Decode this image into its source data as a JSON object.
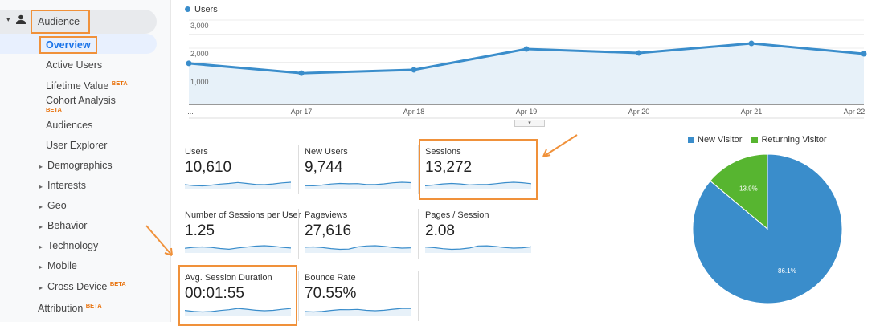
{
  "sidebar": {
    "audience": "Audience",
    "items": [
      {
        "label": "Overview",
        "active": true
      },
      {
        "label": "Active Users"
      },
      {
        "label": "Lifetime Value",
        "badge": "BETA"
      },
      {
        "label": "Cohort Analysis",
        "badge": "BETA"
      },
      {
        "label": "Audiences"
      },
      {
        "label": "User Explorer"
      },
      {
        "label": "Demographics",
        "expandable": true
      },
      {
        "label": "Interests",
        "expandable": true
      },
      {
        "label": "Geo",
        "expandable": true
      },
      {
        "label": "Behavior",
        "expandable": true
      },
      {
        "label": "Technology",
        "expandable": true
      },
      {
        "label": "Mobile",
        "expandable": true
      },
      {
        "label": "Cross Device",
        "expandable": true,
        "badge": "BETA"
      }
    ],
    "attribution": "Attribution",
    "attribution_badge": "BETA"
  },
  "colors": {
    "accent": "#1a73e8",
    "series": "#3a8dcb",
    "fill": "#e7f1f9",
    "highlight": "#f0913a",
    "new_visitor": "#3a8dcb",
    "returning_visitor": "#57b530"
  },
  "chart_data": [
    {
      "type": "area",
      "legend": [
        "Users"
      ],
      "x": [
        "...",
        "Apr 17",
        "Apr 18",
        "Apr 19",
        "Apr 20",
        "Apr 21",
        "Apr 22"
      ],
      "series": [
        {
          "name": "Users",
          "values": [
            1460,
            1110,
            1230,
            1970,
            1830,
            2170,
            1800
          ]
        }
      ],
      "yticks": [
        "3,000",
        "2,000",
        "1,000"
      ],
      "ylim": [
        0,
        3000
      ],
      "grid": true,
      "legend_placement": "top-left"
    },
    {
      "type": "pie",
      "legend": [
        "New Visitor",
        "Returning Visitor"
      ],
      "values": [
        86.1,
        13.9
      ],
      "labels": [
        "86.1%",
        "13.9%"
      ],
      "legend_placement": "top"
    }
  ],
  "metrics": [
    {
      "label": "Users",
      "value": "10,610",
      "highlight": false
    },
    {
      "label": "New Users",
      "value": "9,744",
      "highlight": false
    },
    {
      "label": "Sessions",
      "value": "13,272",
      "highlight": true
    },
    {
      "label": "Number of Sessions per User",
      "value": "1.25",
      "highlight": false
    },
    {
      "label": "Pageviews",
      "value": "27,616",
      "highlight": false
    },
    {
      "label": "Pages / Session",
      "value": "2.08",
      "highlight": false
    },
    {
      "label": "Avg. Session Duration",
      "value": "00:01:55",
      "highlight": true
    },
    {
      "label": "Bounce Rate",
      "value": "70.55%",
      "highlight": false
    }
  ],
  "expand_icon": "chevron-down-icon"
}
